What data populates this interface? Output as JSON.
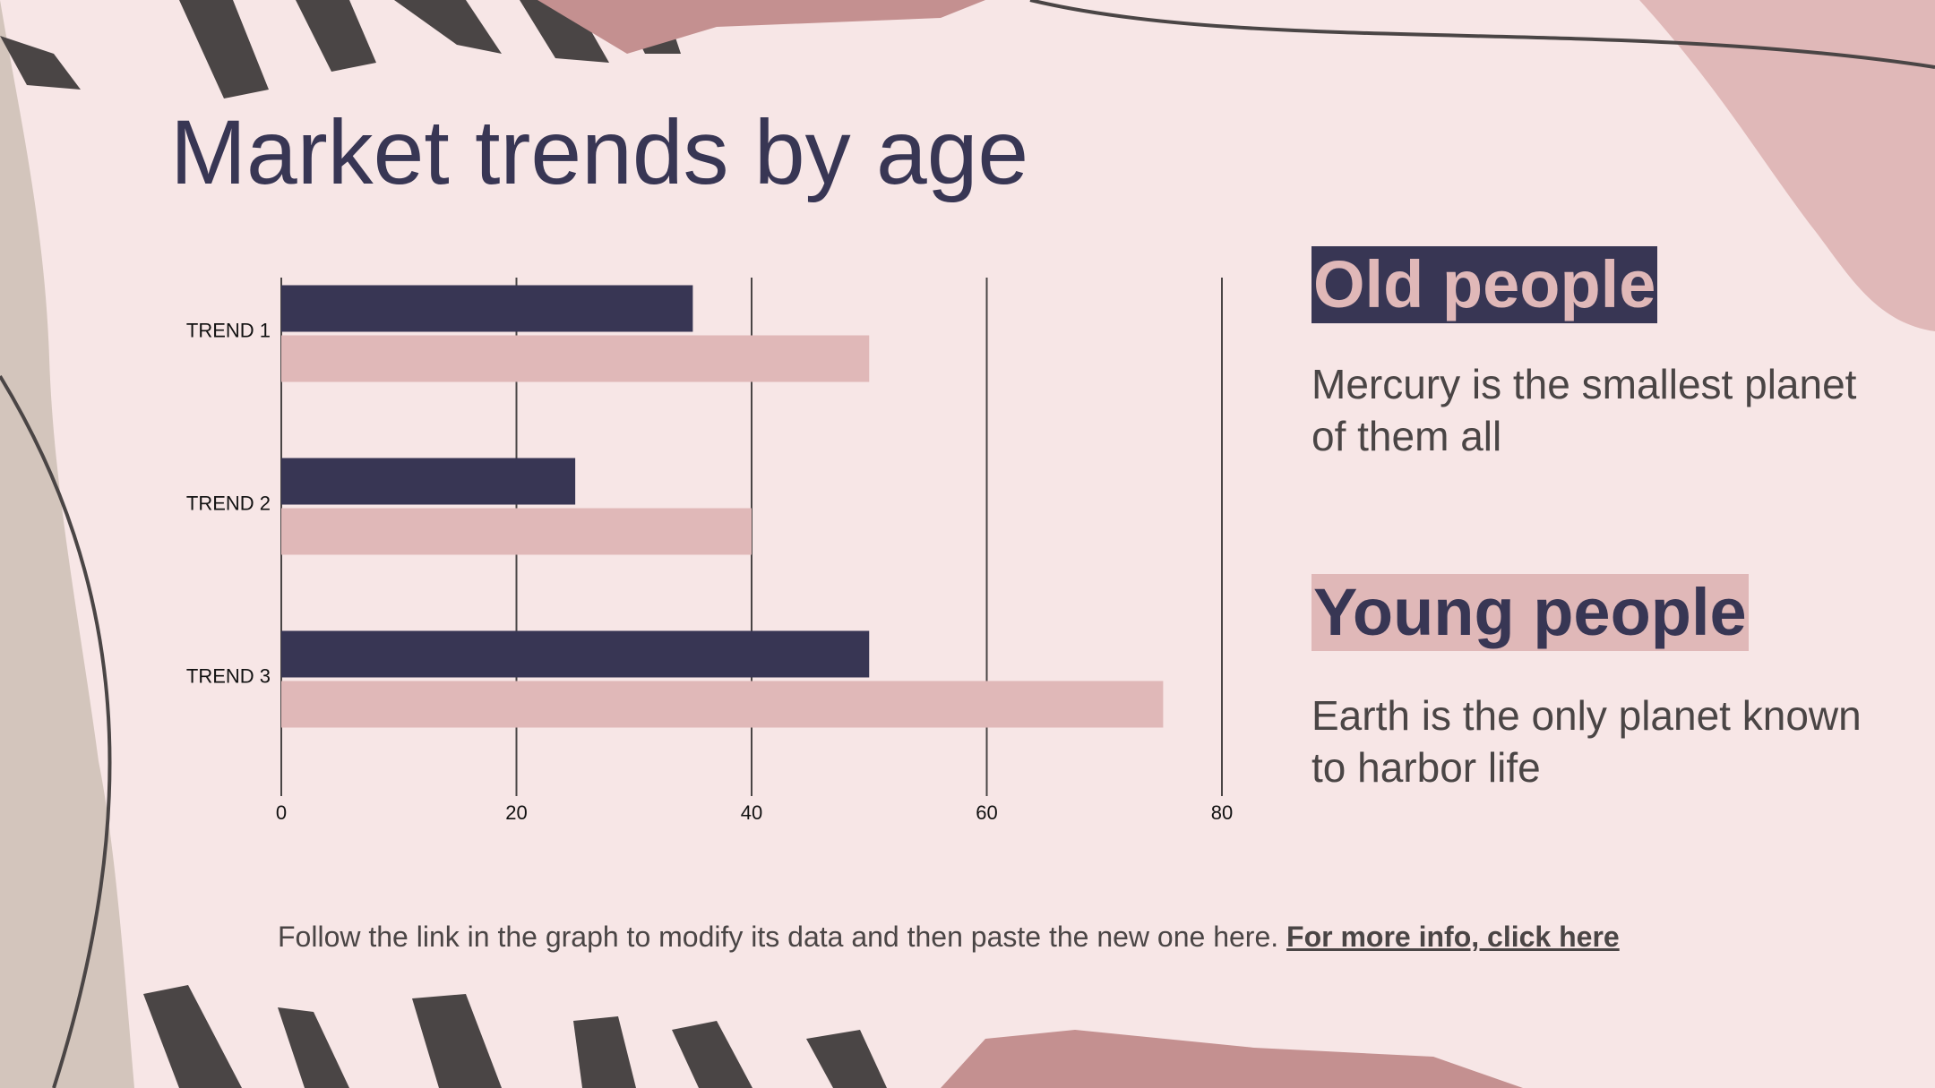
{
  "title": "Market trends by age",
  "chart_data": {
    "type": "bar",
    "orientation": "horizontal",
    "categories": [
      "TREND 1",
      "TREND 2",
      "TREND 3"
    ],
    "series": [
      {
        "name": "Old people",
        "color": "#383654",
        "values": [
          35,
          25,
          50
        ]
      },
      {
        "name": "Young people",
        "color": "#e0b8b8",
        "values": [
          50,
          40,
          75
        ]
      }
    ],
    "xlim": [
      0,
      80
    ],
    "xticks": [
      0,
      20,
      40,
      60,
      80
    ],
    "grid": true
  },
  "descriptions": [
    "Mercury is the smallest planet of them all",
    "Earth is the only planet known to harbor life"
  ],
  "footer": {
    "text": "Follow the link in the graph to modify its data and then paste the new one here.",
    "link": "For more info, click here"
  }
}
